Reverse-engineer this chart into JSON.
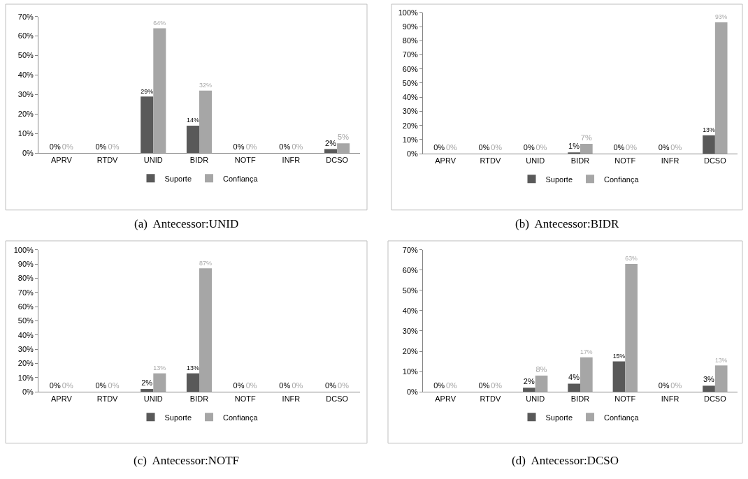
{
  "chart_data": [
    {
      "type": "bar",
      "title": "(a)  Antecessor:UNID",
      "categories": [
        "APRV",
        "RTDV",
        "UNID",
        "BIDR",
        "NOTF",
        "INFR",
        "DCSO"
      ],
      "legend": "bottom",
      "ylim": [
        0,
        70
      ],
      "yticks": [
        {
          "value": 0,
          "label": "0%"
        },
        {
          "value": 10,
          "label": "10%"
        },
        {
          "value": 20,
          "label": "20%"
        },
        {
          "value": 30,
          "label": "30%"
        },
        {
          "value": 40,
          "label": "40%"
        },
        {
          "value": 50,
          "label": "50%"
        },
        {
          "value": 60,
          "label": "60%"
        },
        {
          "value": 70,
          "label": "70%"
        }
      ],
      "series": [
        {
          "name": "Suporte",
          "color": "#595959",
          "values": [
            0,
            0,
            29,
            14,
            0,
            0,
            2
          ],
          "value_labels": [
            "0%",
            "0%",
            "29%",
            "14%",
            "0%",
            "0%",
            "2%"
          ]
        },
        {
          "name": "Confiança",
          "color": "#a6a6a6",
          "values": [
            0,
            0,
            64,
            32,
            0,
            0,
            5
          ],
          "value_labels": [
            "0%",
            "0%",
            "64%",
            "32%",
            "0%",
            "0%",
            "5%"
          ]
        }
      ]
    },
    {
      "type": "bar",
      "title": "(b)  Antecessor:BIDR",
      "categories": [
        "APRV",
        "RTDV",
        "UNID",
        "BIDR",
        "NOTF",
        "INFR",
        "DCSO"
      ],
      "legend": "bottom",
      "ylim": [
        0,
        100
      ],
      "yticks": [
        {
          "value": 0,
          "label": "0%"
        },
        {
          "value": 10,
          "label": "10%"
        },
        {
          "value": 20,
          "label": "20%"
        },
        {
          "value": 30,
          "label": "30%"
        },
        {
          "value": 40,
          "label": "40%"
        },
        {
          "value": 50,
          "label": "50%"
        },
        {
          "value": 60,
          "label": "60%"
        },
        {
          "value": 70,
          "label": "70%"
        },
        {
          "value": 80,
          "label": "80%"
        },
        {
          "value": 90,
          "label": "90%"
        },
        {
          "value": 100,
          "label": "100%"
        }
      ],
      "series": [
        {
          "name": "Suporte",
          "color": "#595959",
          "values": [
            0,
            0,
            0,
            1,
            0,
            0,
            13
          ],
          "value_labels": [
            "0%",
            "0%",
            "0%",
            "1%",
            "0%",
            "0%",
            "13%"
          ]
        },
        {
          "name": "Confiança",
          "color": "#a6a6a6",
          "values": [
            0,
            0,
            0,
            7,
            0,
            0,
            93
          ],
          "value_labels": [
            "0%",
            "0%",
            "0%",
            "7%",
            "0%",
            "0%",
            "93%"
          ]
        }
      ]
    },
    {
      "type": "bar",
      "title": "(c)  Antecessor:NOTF",
      "categories": [
        "APRV",
        "RTDV",
        "UNID",
        "BIDR",
        "NOTF",
        "INFR",
        "DCSO"
      ],
      "legend": "bottom",
      "ylim": [
        0,
        100
      ],
      "yticks": [
        {
          "value": 0,
          "label": "0%"
        },
        {
          "value": 10,
          "label": "10%"
        },
        {
          "value": 20,
          "label": "20%"
        },
        {
          "value": 30,
          "label": "30%"
        },
        {
          "value": 40,
          "label": "40%"
        },
        {
          "value": 50,
          "label": "50%"
        },
        {
          "value": 60,
          "label": "60%"
        },
        {
          "value": 70,
          "label": "70%"
        },
        {
          "value": 80,
          "label": "80%"
        },
        {
          "value": 90,
          "label": "90%"
        },
        {
          "value": 100,
          "label": "100%"
        }
      ],
      "series": [
        {
          "name": "Suporte",
          "color": "#595959",
          "values": [
            0,
            0,
            2,
            13,
            0,
            0,
            0
          ],
          "value_labels": [
            "0%",
            "0%",
            "2%",
            "13%",
            "0%",
            "0%",
            "0%"
          ]
        },
        {
          "name": "Confiança",
          "color": "#a6a6a6",
          "values": [
            0,
            0,
            13,
            87,
            0,
            0,
            0
          ],
          "value_labels": [
            "0%",
            "0%",
            "13%",
            "87%",
            "0%",
            "0%",
            "0%"
          ]
        }
      ]
    },
    {
      "type": "bar",
      "title": "(d)  Antecessor:DCSO",
      "categories": [
        "APRV",
        "RTDV",
        "UNID",
        "BIDR",
        "NOTF",
        "INFR",
        "DCSO"
      ],
      "legend": "bottom",
      "ylim": [
        0,
        70
      ],
      "yticks": [
        {
          "value": 0,
          "label": "0%"
        },
        {
          "value": 10,
          "label": "10%"
        },
        {
          "value": 20,
          "label": "20%"
        },
        {
          "value": 30,
          "label": "30%"
        },
        {
          "value": 40,
          "label": "40%"
        },
        {
          "value": 50,
          "label": "50%"
        },
        {
          "value": 60,
          "label": "60%"
        },
        {
          "value": 70,
          "label": "70%"
        }
      ],
      "series": [
        {
          "name": "Suporte",
          "color": "#595959",
          "values": [
            0,
            0,
            2,
            4,
            15,
            0,
            3
          ],
          "value_labels": [
            "0%",
            "0%",
            "2%",
            "4%",
            "15%",
            "0%",
            "3%"
          ]
        },
        {
          "name": "Confiança",
          "color": "#a6a6a6",
          "values": [
            0,
            0,
            8,
            17,
            63,
            0,
            13
          ],
          "value_labels": [
            "0%",
            "0%",
            "8%",
            "17%",
            "63%",
            "0%",
            "13%"
          ]
        }
      ]
    }
  ]
}
